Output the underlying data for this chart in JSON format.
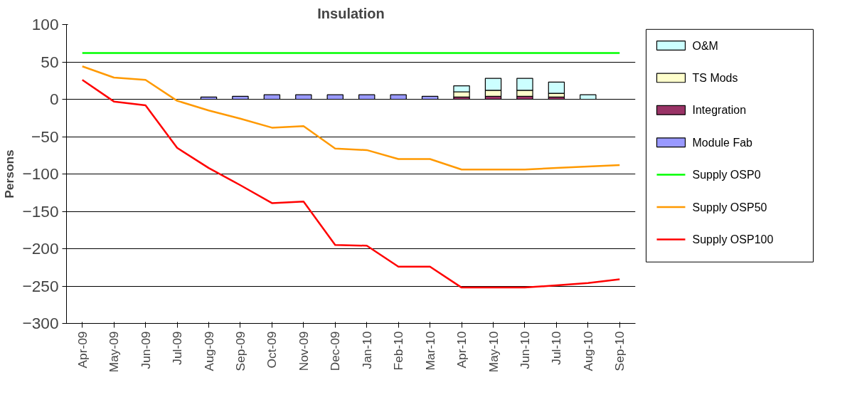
{
  "chart_data": {
    "type": "bar",
    "title": "Insulation",
    "ylabel": "Persons",
    "categories": [
      "Apr-09",
      "May-09",
      "Jun-09",
      "Jul-09",
      "Aug-09",
      "Sep-09",
      "Oct-09",
      "Nov-09",
      "Dec-09",
      "Jan-10",
      "Feb-10",
      "Mar-10",
      "Apr-10",
      "May-10",
      "Jun-10",
      "Jul-10",
      "Aug-10",
      "Sep-10"
    ],
    "stacked": true,
    "series": [
      {
        "name": "Module Fab",
        "color": "#9999ff",
        "values": [
          null,
          null,
          null,
          null,
          3,
          4,
          6,
          6,
          6,
          6,
          6,
          4,
          null,
          null,
          null,
          null,
          null,
          null
        ]
      },
      {
        "name": "Integration",
        "color": "#993366",
        "values": [
          null,
          null,
          null,
          null,
          null,
          null,
          null,
          null,
          null,
          null,
          null,
          null,
          3,
          4,
          4,
          3,
          null,
          null
        ]
      },
      {
        "name": "TS Mods",
        "color": "#ffffcc",
        "values": [
          null,
          null,
          null,
          null,
          null,
          null,
          null,
          null,
          null,
          null,
          null,
          null,
          7,
          8,
          8,
          5,
          null,
          null
        ]
      },
      {
        "name": "O&M",
        "color": "#ccffff",
        "values": [
          null,
          null,
          null,
          null,
          null,
          null,
          null,
          null,
          null,
          null,
          null,
          null,
          8,
          16,
          16,
          15,
          6,
          null
        ]
      },
      {
        "name": "Supply OSP0",
        "type": "line",
        "color": "#00ff00",
        "values": [
          62,
          62,
          62,
          62,
          62,
          62,
          62,
          62,
          62,
          62,
          62,
          62,
          62,
          62,
          62,
          62,
          62,
          62
        ]
      },
      {
        "name": "Supply OSP50",
        "type": "line",
        "color": "#ff9900",
        "values": [
          44,
          29,
          26,
          -2,
          -15,
          -26,
          -38,
          -36,
          -66,
          -68,
          -80,
          -80,
          -94,
          -94,
          -94,
          -92,
          -90,
          -88
        ]
      },
      {
        "name": "Supply OSP100",
        "type": "line",
        "color": "#ff0000",
        "values": [
          26,
          -3,
          -8,
          -65,
          -92,
          -115,
          -139,
          -137,
          -195,
          -196,
          -224,
          -224,
          -252,
          -252,
          -252,
          -249,
          -246,
          -241
        ]
      }
    ],
    "ylim": [
      -300,
      100
    ],
    "yticks": [
      -300,
      -250,
      -200,
      -150,
      -100,
      -50,
      0,
      50,
      100
    ],
    "grid": "y",
    "legend": "right",
    "marker": "none"
  }
}
